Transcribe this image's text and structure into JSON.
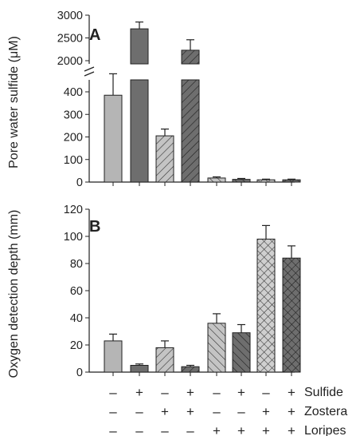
{
  "figure": {
    "panel_a_label": "A",
    "panel_b_label": "B",
    "treatment_rows": [
      {
        "label": "Sulfide",
        "signs": [
          "–",
          "+",
          "–",
          "+",
          "–",
          "+",
          "–",
          "+"
        ]
      },
      {
        "label": "Zostera",
        "signs": [
          "–",
          "–",
          "+",
          "+",
          "–",
          "–",
          "+",
          "+"
        ]
      },
      {
        "label": "Loripes",
        "signs": [
          "–",
          "–",
          "–",
          "–",
          "+",
          "+",
          "+",
          "+"
        ]
      }
    ]
  },
  "chart_data": [
    {
      "type": "bar",
      "panel": "A",
      "ylabel": "Pore water sulfide (μM)",
      "broken_axis": {
        "lower_range": [
          0,
          450
        ],
        "upper_range": [
          2000,
          3000
        ]
      },
      "yticks_lower": [
        "0",
        "100",
        "200",
        "300",
        "400"
      ],
      "yticks_upper": [
        "2000",
        "2500",
        "3000"
      ],
      "values": [
        385,
        2700,
        205,
        2230,
        18,
        12,
        10,
        10
      ],
      "errors": [
        95,
        150,
        30,
        230,
        5,
        4,
        3,
        3
      ],
      "bar_fills": [
        "#b5b5b5",
        "#6e6e6e",
        "#b5b5b5",
        "#6e6e6e",
        "#b5b5b5",
        "#6e6e6e",
        "#b5b5b5",
        "#6e6e6e"
      ],
      "bar_patterns": [
        "none",
        "none",
        "diag-right",
        "diag-right",
        "diag-left",
        "diag-left",
        "cross",
        "cross"
      ]
    },
    {
      "type": "bar",
      "panel": "B",
      "ylabel": "Oxygen detection depth (mm)",
      "ylim": [
        0,
        120
      ],
      "yticks": [
        "0",
        "20",
        "40",
        "60",
        "80",
        "100",
        "120"
      ],
      "values": [
        23,
        5,
        18,
        4,
        36,
        29,
        98,
        84
      ],
      "errors": [
        5,
        1,
        5,
        1,
        7,
        6,
        10,
        9
      ],
      "bar_fills": [
        "#b5b5b5",
        "#6e6e6e",
        "#b5b5b5",
        "#6e6e6e",
        "#b5b5b5",
        "#6e6e6e",
        "#b5b5b5",
        "#6e6e6e"
      ],
      "bar_patterns": [
        "none",
        "none",
        "diag-right",
        "diag-right",
        "diag-left",
        "diag-left",
        "cross",
        "cross"
      ]
    }
  ]
}
